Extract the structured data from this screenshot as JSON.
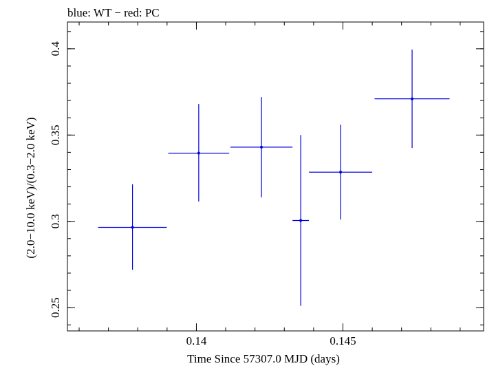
{
  "chart_data": {
    "type": "scatter",
    "title": "blue: WT − red: PC",
    "xlabel": "Time Since 57307.0 MJD (days)",
    "ylabel": "(2.0−10.0 keV)/(0.3−2.0 keV)",
    "xlim": [
      0.1356,
      0.1498
    ],
    "ylim": [
      0.2365,
      0.4155
    ],
    "xticks": [
      {
        "value": 0.14,
        "label": "0.14"
      },
      {
        "value": 0.145,
        "label": "0.145"
      }
    ],
    "yticks": [
      {
        "value": 0.25,
        "label": "0.25"
      },
      {
        "value": 0.3,
        "label": "0.3"
      },
      {
        "value": 0.35,
        "label": "0.35"
      },
      {
        "value": 0.4,
        "label": "0.4"
      }
    ],
    "x_minor_step": 0.001,
    "y_minor_step": 0.01,
    "grid": false,
    "series": [
      {
        "name": "WT",
        "color": "#0000dd",
        "points": [
          {
            "x": 0.13782,
            "y": 0.2965,
            "xerr": 0.00117,
            "yerr_lo": 0.0245,
            "yerr_hi": 0.025
          },
          {
            "x": 0.14008,
            "y": 0.3395,
            "xerr": 0.00104,
            "yerr_lo": 0.028,
            "yerr_hi": 0.0285
          },
          {
            "x": 0.14222,
            "y": 0.343,
            "xerr": 0.00106,
            "yerr_lo": 0.029,
            "yerr_hi": 0.029
          },
          {
            "x": 0.14356,
            "y": 0.3005,
            "xerr": 0.00028,
            "yerr_lo": 0.0495,
            "yerr_hi": 0.0495
          },
          {
            "x": 0.14492,
            "y": 0.3285,
            "xerr": 0.00108,
            "yerr_lo": 0.0275,
            "yerr_hi": 0.0275
          },
          {
            "x": 0.14736,
            "y": 0.371,
            "xerr": 0.00128,
            "yerr_lo": 0.0285,
            "yerr_hi": 0.0285
          }
        ]
      }
    ]
  }
}
